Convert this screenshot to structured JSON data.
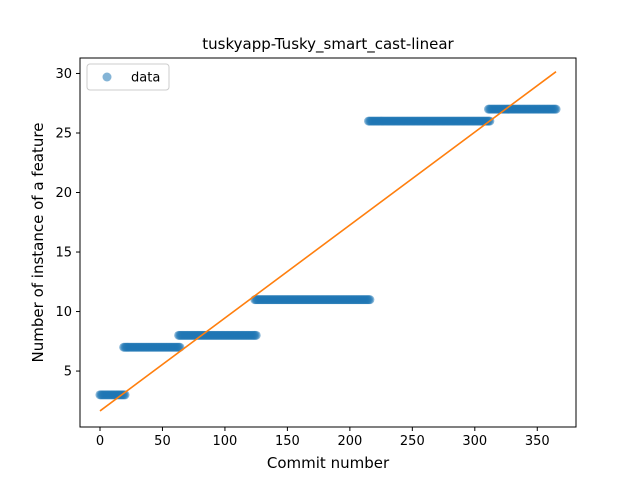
{
  "chart_data": {
    "type": "scatter",
    "title": "tuskyapp-Tusky_smart_cast-linear",
    "xlabel": "Commit number",
    "ylabel": "Number of instance of a feature",
    "xlim": [
      -16,
      381
    ],
    "ylim": [
      0.3,
      31.3
    ],
    "xticks": [
      0,
      50,
      100,
      150,
      200,
      250,
      300,
      350
    ],
    "yticks": [
      5,
      10,
      15,
      20,
      25,
      30
    ],
    "legend": {
      "placement": "top-left",
      "entries": [
        "data"
      ]
    },
    "series": [
      {
        "name": "data",
        "kind": "scatter-steps",
        "color": "#1f77b4",
        "steps": [
          {
            "x_start": 0,
            "x_end": 20,
            "y": 3
          },
          {
            "x_start": 19,
            "x_end": 64,
            "y": 7
          },
          {
            "x_start": 63,
            "x_end": 125,
            "y": 8
          },
          {
            "x_start": 124,
            "x_end": 216,
            "y": 11
          },
          {
            "x_start": 215,
            "x_end": 312,
            "y": 26
          },
          {
            "x_start": 311,
            "x_end": 365,
            "y": 27
          }
        ]
      },
      {
        "name": "",
        "kind": "line",
        "color": "#ff7f0e",
        "x": [
          0,
          365
        ],
        "y": [
          1.65,
          30.15
        ]
      }
    ]
  }
}
